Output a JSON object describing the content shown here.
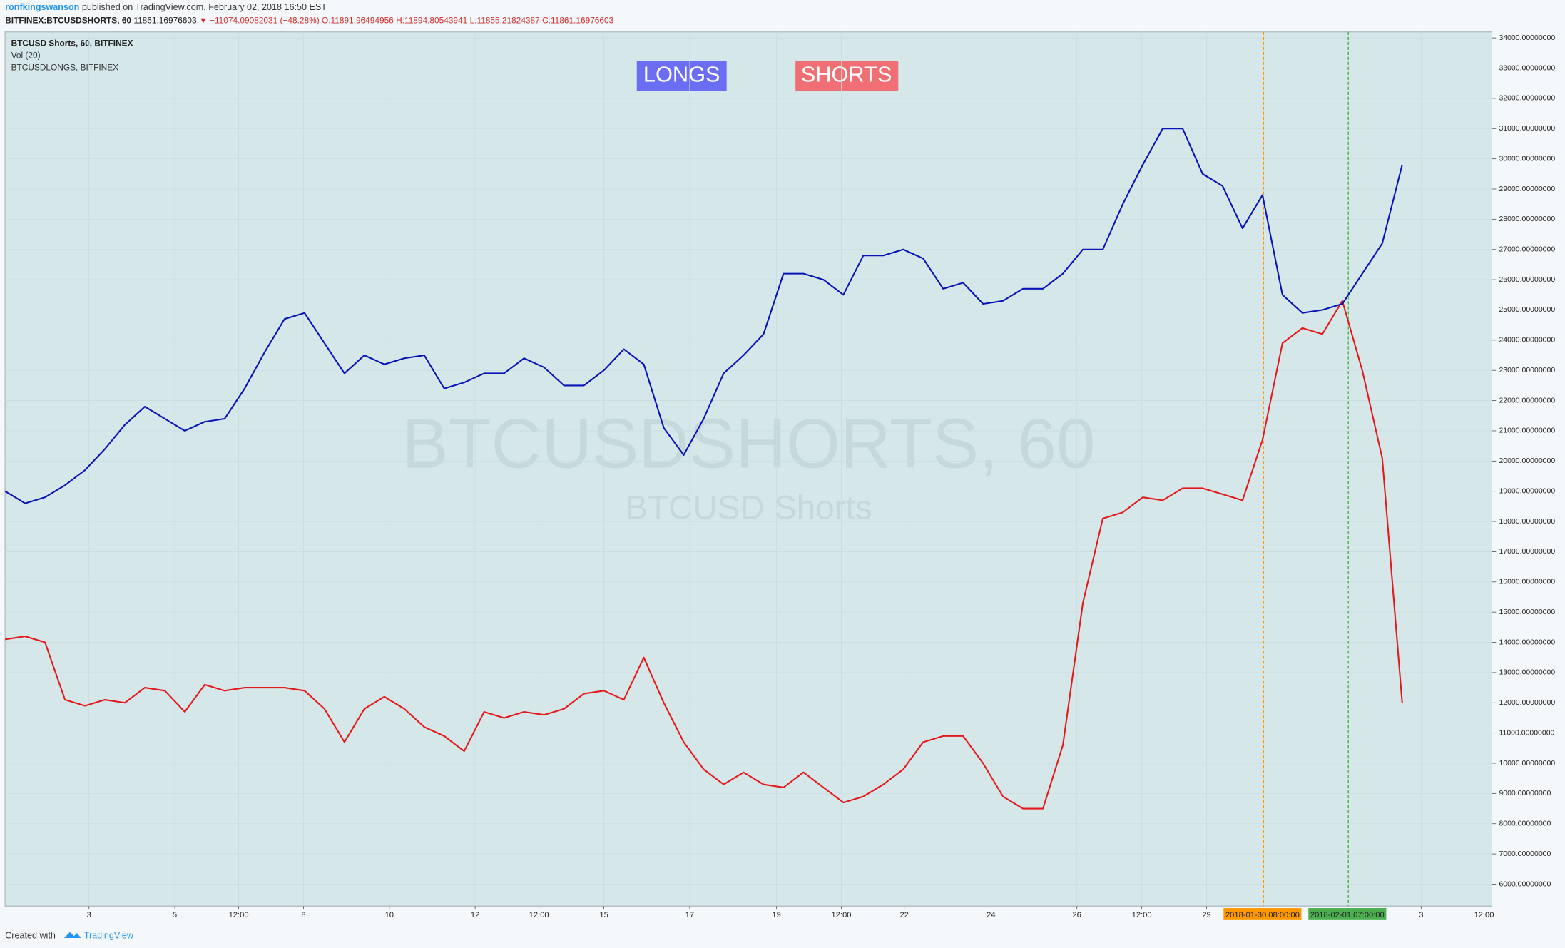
{
  "header": {
    "author": "ronfkingswanson",
    "published": "published on TradingView.com, February 02, 2018 16:50 EST",
    "symbol": "BITFINEX:BTCUSDSHORTS, 60",
    "last": "11861.16976603",
    "change": "−11074.09082031 (−48.28%)",
    "open": "O:11891.96494956",
    "high": "H:11894.80543941",
    "low": "L:11855.21824387",
    "close": "C:11861.16976603"
  },
  "chart_data": {
    "type": "line",
    "volume_label": "Vol (20)",
    "annotations": [
      "LONGS",
      "SHORTS"
    ],
    "watermark": "BTCUSDSHORTS, 60",
    "watermark_sub": "BTCUSD Shorts",
    "markers": [
      "2018-01-30 08:00:00",
      "2018-02-01 07:00:00"
    ],
    "categories": [
      null,
      null,
      null,
      null,
      null,
      null,
      null,
      null,
      null,
      null,
      null,
      null,
      null,
      null,
      null,
      null,
      null,
      null,
      null,
      null,
      null,
      null,
      null,
      null,
      null,
      null,
      null,
      null,
      null,
      null,
      null,
      null,
      null,
      null,
      null,
      null,
      null,
      null,
      null,
      null,
      null,
      null,
      null,
      null,
      null,
      null,
      null,
      null,
      null,
      null,
      null,
      null,
      null,
      null,
      null,
      null,
      null,
      null,
      null,
      null,
      null,
      null,
      null,
      null,
      null,
      null,
      null,
      null,
      null,
      null,
      null,
      null,
      null,
      null,
      null
    ],
    "series": [
      {
        "name": "BTCUSD Shorts, 60, BITFINEX",
        "color": "#e31a1c",
        "values": [
          14100,
          14200,
          14000,
          12100,
          11900,
          12100,
          12000,
          12500,
          12400,
          11700,
          12600,
          12400,
          12500,
          12500,
          12500,
          12400,
          11800,
          10700,
          11800,
          12200,
          11800,
          11200,
          10900,
          10400,
          11700,
          11500,
          11700,
          11600,
          11800,
          12300,
          12400,
          12100,
          13500,
          12000,
          10700,
          9800,
          9300,
          9700,
          9300,
          9200,
          9700,
          9200,
          8700,
          8900,
          9300,
          9800,
          10700,
          10900,
          10900,
          10000,
          8900,
          8500,
          8500,
          10600,
          15300,
          18100,
          18300,
          18800,
          18700,
          19100,
          19100,
          18900,
          18700,
          20700,
          23900,
          24400,
          24200,
          25300,
          23000,
          20100,
          12000,
          null,
          null,
          null,
          null
        ]
      },
      {
        "name": "BTCUSDLONGS, BITFINEX",
        "color": "#0a14b4",
        "values": [
          19000,
          18600,
          18800,
          19200,
          19700,
          20400,
          21200,
          21800,
          21400,
          21000,
          21300,
          21400,
          22400,
          23600,
          24700,
          24900,
          23900,
          22900,
          23500,
          23200,
          23400,
          23500,
          22400,
          22600,
          22900,
          22900,
          23400,
          23100,
          22500,
          22500,
          23000,
          23700,
          23200,
          21100,
          20200,
          21400,
          22900,
          23500,
          24200,
          26200,
          26200,
          26000,
          25500,
          26800,
          26800,
          27000,
          26700,
          25700,
          25900,
          25200,
          25300,
          25700,
          25700,
          26200,
          27000,
          27000,
          28500,
          29800,
          31000,
          31000,
          29500,
          29100,
          27700,
          28800,
          25500,
          24900,
          25000,
          25200,
          26200,
          27200,
          29800,
          null,
          null,
          null,
          null
        ]
      }
    ],
    "xlim": [
      0,
      74.5
    ],
    "xticks": [
      {
        "value": 4.2,
        "label": "3"
      },
      {
        "value": 8.5,
        "label": "5"
      },
      {
        "value": 11.7,
        "label": "12:00"
      },
      {
        "value": 14.95,
        "label": "8"
      },
      {
        "value": 19.25,
        "label": "10"
      },
      {
        "value": 23.55,
        "label": "12"
      },
      {
        "value": 26.75,
        "label": "12:00"
      },
      {
        "value": 30,
        "label": "15"
      },
      {
        "value": 34.3,
        "label": "17"
      },
      {
        "value": 38.65,
        "label": "19"
      },
      {
        "value": 41.9,
        "label": "12:00"
      },
      {
        "value": 45.05,
        "label": "22"
      },
      {
        "value": 49.4,
        "label": "24"
      },
      {
        "value": 53.7,
        "label": "26"
      },
      {
        "value": 56.95,
        "label": "12:00"
      },
      {
        "value": 60.2,
        "label": "29"
      },
      {
        "value": 70.95,
        "label": "3"
      },
      {
        "value": 74.1,
        "label": "12:00"
      }
    ],
    "ylim": [
      5274,
      34198
    ],
    "yticks": [
      {
        "value": 6000,
        "label": "6000.00000000"
      },
      {
        "value": 7000,
        "label": "7000.00000000"
      },
      {
        "value": 8000,
        "label": "8000.00000000"
      },
      {
        "value": 9000,
        "label": "9000.00000000"
      },
      {
        "value": 10000,
        "label": "10000.00000000"
      },
      {
        "value": 11000,
        "label": "11000.00000000"
      },
      {
        "value": 12000,
        "label": "12000.00000000"
      },
      {
        "value": 13000,
        "label": "13000.00000000"
      },
      {
        "value": 14000,
        "label": "14000.00000000"
      },
      {
        "value": 15000,
        "label": "15000.00000000"
      },
      {
        "value": 16000,
        "label": "16000.00000000"
      },
      {
        "value": 17000,
        "label": "17000.00000000"
      },
      {
        "value": 18000,
        "label": "18000.00000000"
      },
      {
        "value": 19000,
        "label": "19000.00000000"
      },
      {
        "value": 20000,
        "label": "20000.00000000"
      },
      {
        "value": 21000,
        "label": "21000.00000000"
      },
      {
        "value": 22000,
        "label": "22000.00000000"
      },
      {
        "value": 23000,
        "label": "23000.00000000"
      },
      {
        "value": 24000,
        "label": "24000.00000000"
      },
      {
        "value": 25000,
        "label": "25000.00000000"
      },
      {
        "value": 26000,
        "label": "26000.00000000"
      },
      {
        "value": 27000,
        "label": "27000.00000000"
      },
      {
        "value": 28000,
        "label": "28000.00000000"
      },
      {
        "value": 29000,
        "label": "29000.00000000"
      },
      {
        "value": 30000,
        "label": "30000.00000000"
      },
      {
        "value": 31000,
        "label": "31000.00000000"
      },
      {
        "value": 32000,
        "label": "32000.00000000"
      },
      {
        "value": 33000,
        "label": "33000.00000000"
      },
      {
        "value": 34000,
        "label": "34000.00000000"
      }
    ],
    "grid": true
  },
  "footer": {
    "created": "Created with",
    "brand": "TradingView"
  }
}
